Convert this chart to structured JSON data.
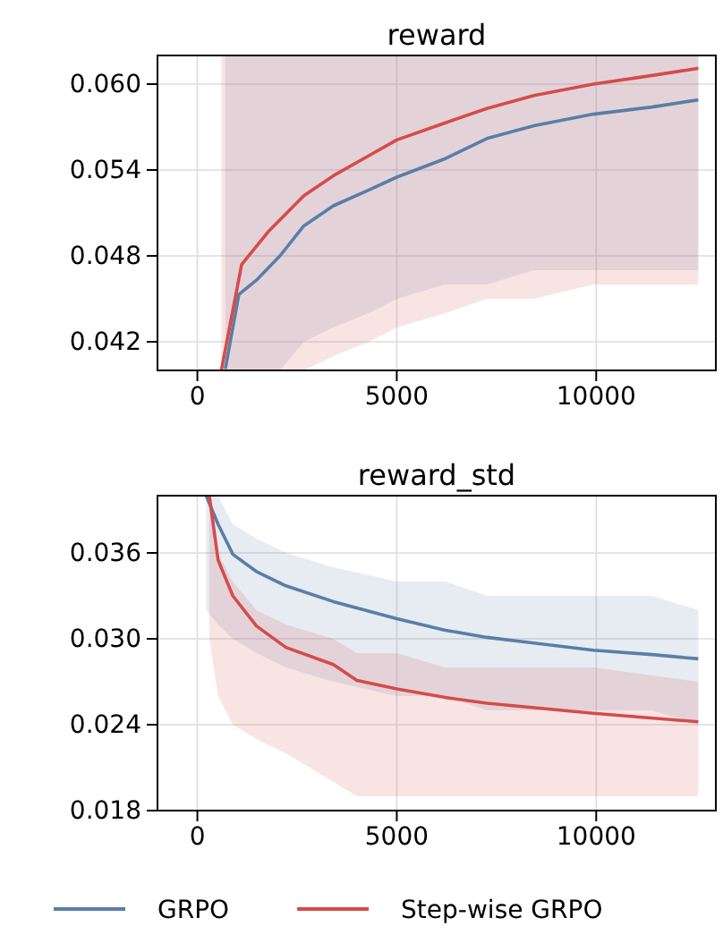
{
  "chart_data": [
    {
      "type": "line",
      "title": "reward",
      "xlim": [
        -1000,
        13000
      ],
      "xticks": [
        0,
        5000,
        10000
      ],
      "ylim": [
        0.04,
        0.062
      ],
      "yticks": [
        {
          "value": 0.042,
          "label": "0.042"
        },
        {
          "value": 0.048,
          "label": "0.048"
        },
        {
          "value": 0.054,
          "label": "0.054"
        },
        {
          "value": 0.06,
          "label": "0.060"
        }
      ],
      "grid": true,
      "series": [
        {
          "color": "#5a7ea6",
          "x": [
            700,
            1040,
            1480,
            2070,
            2670,
            3410,
            4300,
            5000,
            6220,
            7260,
            8440,
            9930,
            11400,
            12560
          ],
          "values": [
            0.0401,
            0.0453,
            0.0463,
            0.048,
            0.0501,
            0.0515,
            0.0526,
            0.0535,
            0.0548,
            0.0562,
            0.0571,
            0.0579,
            0.0584,
            0.0589
          ],
          "lower": [
            0.04,
            0.04,
            0.04,
            0.04,
            0.042,
            0.043,
            0.044,
            0.045,
            0.046,
            0.046,
            0.047,
            0.047,
            0.047,
            0.047
          ],
          "upper": [
            0.062,
            0.062,
            0.062,
            0.062,
            0.062,
            0.062,
            0.062,
            0.062,
            0.062,
            0.062,
            0.062,
            0.062,
            0.062,
            0.062
          ]
        },
        {
          "color": "#d64b4b",
          "x": [
            600,
            1110,
            1780,
            2670,
            3410,
            4300,
            5000,
            6220,
            7260,
            8440,
            9930,
            11400,
            12560
          ],
          "values": [
            0.04,
            0.0474,
            0.0497,
            0.0522,
            0.0536,
            0.055,
            0.0561,
            0.0573,
            0.0583,
            0.0592,
            0.06,
            0.0606,
            0.0611
          ],
          "lower": [
            0.04,
            0.04,
            0.04,
            0.04,
            0.041,
            0.042,
            0.043,
            0.044,
            0.045,
            0.045,
            0.046,
            0.046,
            0.046
          ],
          "upper": [
            0.062,
            0.062,
            0.062,
            0.062,
            0.062,
            0.062,
            0.062,
            0.062,
            0.062,
            0.062,
            0.062,
            0.062,
            0.062
          ]
        }
      ]
    },
    {
      "type": "line",
      "title": "reward_std",
      "xlim": [
        -1000,
        13000
      ],
      "xticks": [
        0,
        5000,
        10000
      ],
      "ylim": [
        0.018,
        0.04
      ],
      "yticks": [
        {
          "value": 0.018,
          "label": "0.018"
        },
        {
          "value": 0.024,
          "label": "0.024"
        },
        {
          "value": 0.03,
          "label": "0.030"
        },
        {
          "value": 0.036,
          "label": "0.036"
        }
      ],
      "grid": true,
      "legend": "bottom",
      "series": [
        {
          "name": "GRPO",
          "color": "#5a7ea6",
          "x": [
            220,
            520,
            890,
            1480,
            2220,
            3410,
            5000,
            6220,
            7260,
            8440,
            9930,
            11400,
            12560
          ],
          "values": [
            0.04,
            0.038,
            0.0359,
            0.0347,
            0.0337,
            0.0326,
            0.0314,
            0.0306,
            0.0301,
            0.0297,
            0.0292,
            0.0289,
            0.0286
          ],
          "lower": [
            0.032,
            0.031,
            0.03,
            0.029,
            0.028,
            0.027,
            0.026,
            0.026,
            0.025,
            0.025,
            0.025,
            0.025,
            0.024
          ],
          "upper": [
            0.04,
            0.04,
            0.038,
            0.037,
            0.036,
            0.035,
            0.034,
            0.034,
            0.033,
            0.033,
            0.033,
            0.033,
            0.032
          ]
        },
        {
          "name": "Step-wise GRPO",
          "color": "#d64b4b",
          "x": [
            300,
            520,
            890,
            1480,
            2220,
            3410,
            4000,
            5000,
            6220,
            7260,
            9930,
            12560
          ],
          "values": [
            0.04,
            0.0355,
            0.033,
            0.0309,
            0.0294,
            0.0282,
            0.0271,
            0.0265,
            0.0259,
            0.0255,
            0.0248,
            0.0242
          ],
          "lower": [
            0.03,
            0.026,
            0.024,
            0.023,
            0.022,
            0.02,
            0.019,
            0.019,
            0.019,
            0.019,
            0.019,
            0.019
          ],
          "upper": [
            0.04,
            0.036,
            0.034,
            0.032,
            0.031,
            0.03,
            0.029,
            0.029,
            0.028,
            0.028,
            0.028,
            0.027
          ]
        }
      ]
    }
  ]
}
